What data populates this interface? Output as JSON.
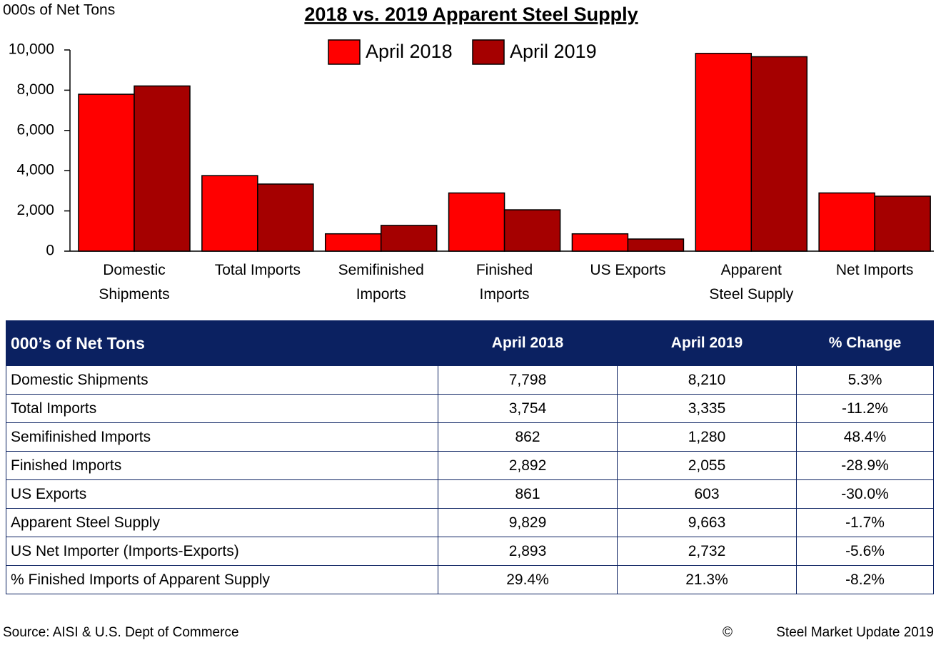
{
  "chart_data": {
    "type": "bar",
    "title": "2018 vs. 2019 Apparent Steel Supply",
    "y_axis_label": "000s of Net Tons",
    "categories": [
      "Domestic Shipments",
      "Total Imports",
      "Semifinished Imports",
      "Finished Imports",
      "US Exports",
      "Apparent Steel Supply",
      "Net Imports"
    ],
    "series": [
      {
        "name": "April 2018",
        "color": "#ff0000",
        "values": [
          7798,
          3754,
          862,
          2892,
          861,
          9829,
          2893
        ]
      },
      {
        "name": "April 2019",
        "color": "#a50000",
        "values": [
          8210,
          3335,
          1280,
          2055,
          603,
          9663,
          2732
        ]
      }
    ],
    "ylim": [
      0,
      10000
    ],
    "yticks": [
      0,
      {
        "value": 2000,
        "label": "2,000"
      },
      {
        "value": 4000,
        "label": "4,000"
      },
      {
        "value": 6000,
        "label": "6,000"
      },
      {
        "value": 8000,
        "label": "8,000"
      },
      {
        "value": 10000,
        "label": "10,000"
      }
    ],
    "grid": false,
    "legend": "top"
  },
  "table": {
    "header": [
      "000’s of Net Tons",
      "April 2018",
      "April 2019",
      "% Change"
    ],
    "rows": [
      [
        "Domestic Shipments",
        "7,798",
        "8,210",
        "5.3%"
      ],
      [
        "Total Imports",
        "3,754",
        "3,335",
        "-11.2%"
      ],
      [
        "Semifinished Imports",
        "862",
        "1,280",
        "48.4%"
      ],
      [
        "Finished Imports",
        "2,892",
        "2,055",
        "-28.9%"
      ],
      [
        "US Exports",
        "861",
        "603",
        "-30.0%"
      ],
      [
        "Apparent Steel Supply",
        "9,829",
        "9,663",
        "-1.7%"
      ],
      [
        "US Net Importer (Imports-Exports)",
        "2,893",
        "2,732",
        "-5.6%"
      ],
      [
        "% Finished Imports of Apparent Supply",
        "29.4%",
        "21.3%",
        "-8.2%"
      ]
    ]
  },
  "footer": {
    "source": "Source:  AISI & U.S. Dept of Commerce",
    "copyright_symbol": "©",
    "copyright": "Steel Market Update 2019"
  }
}
